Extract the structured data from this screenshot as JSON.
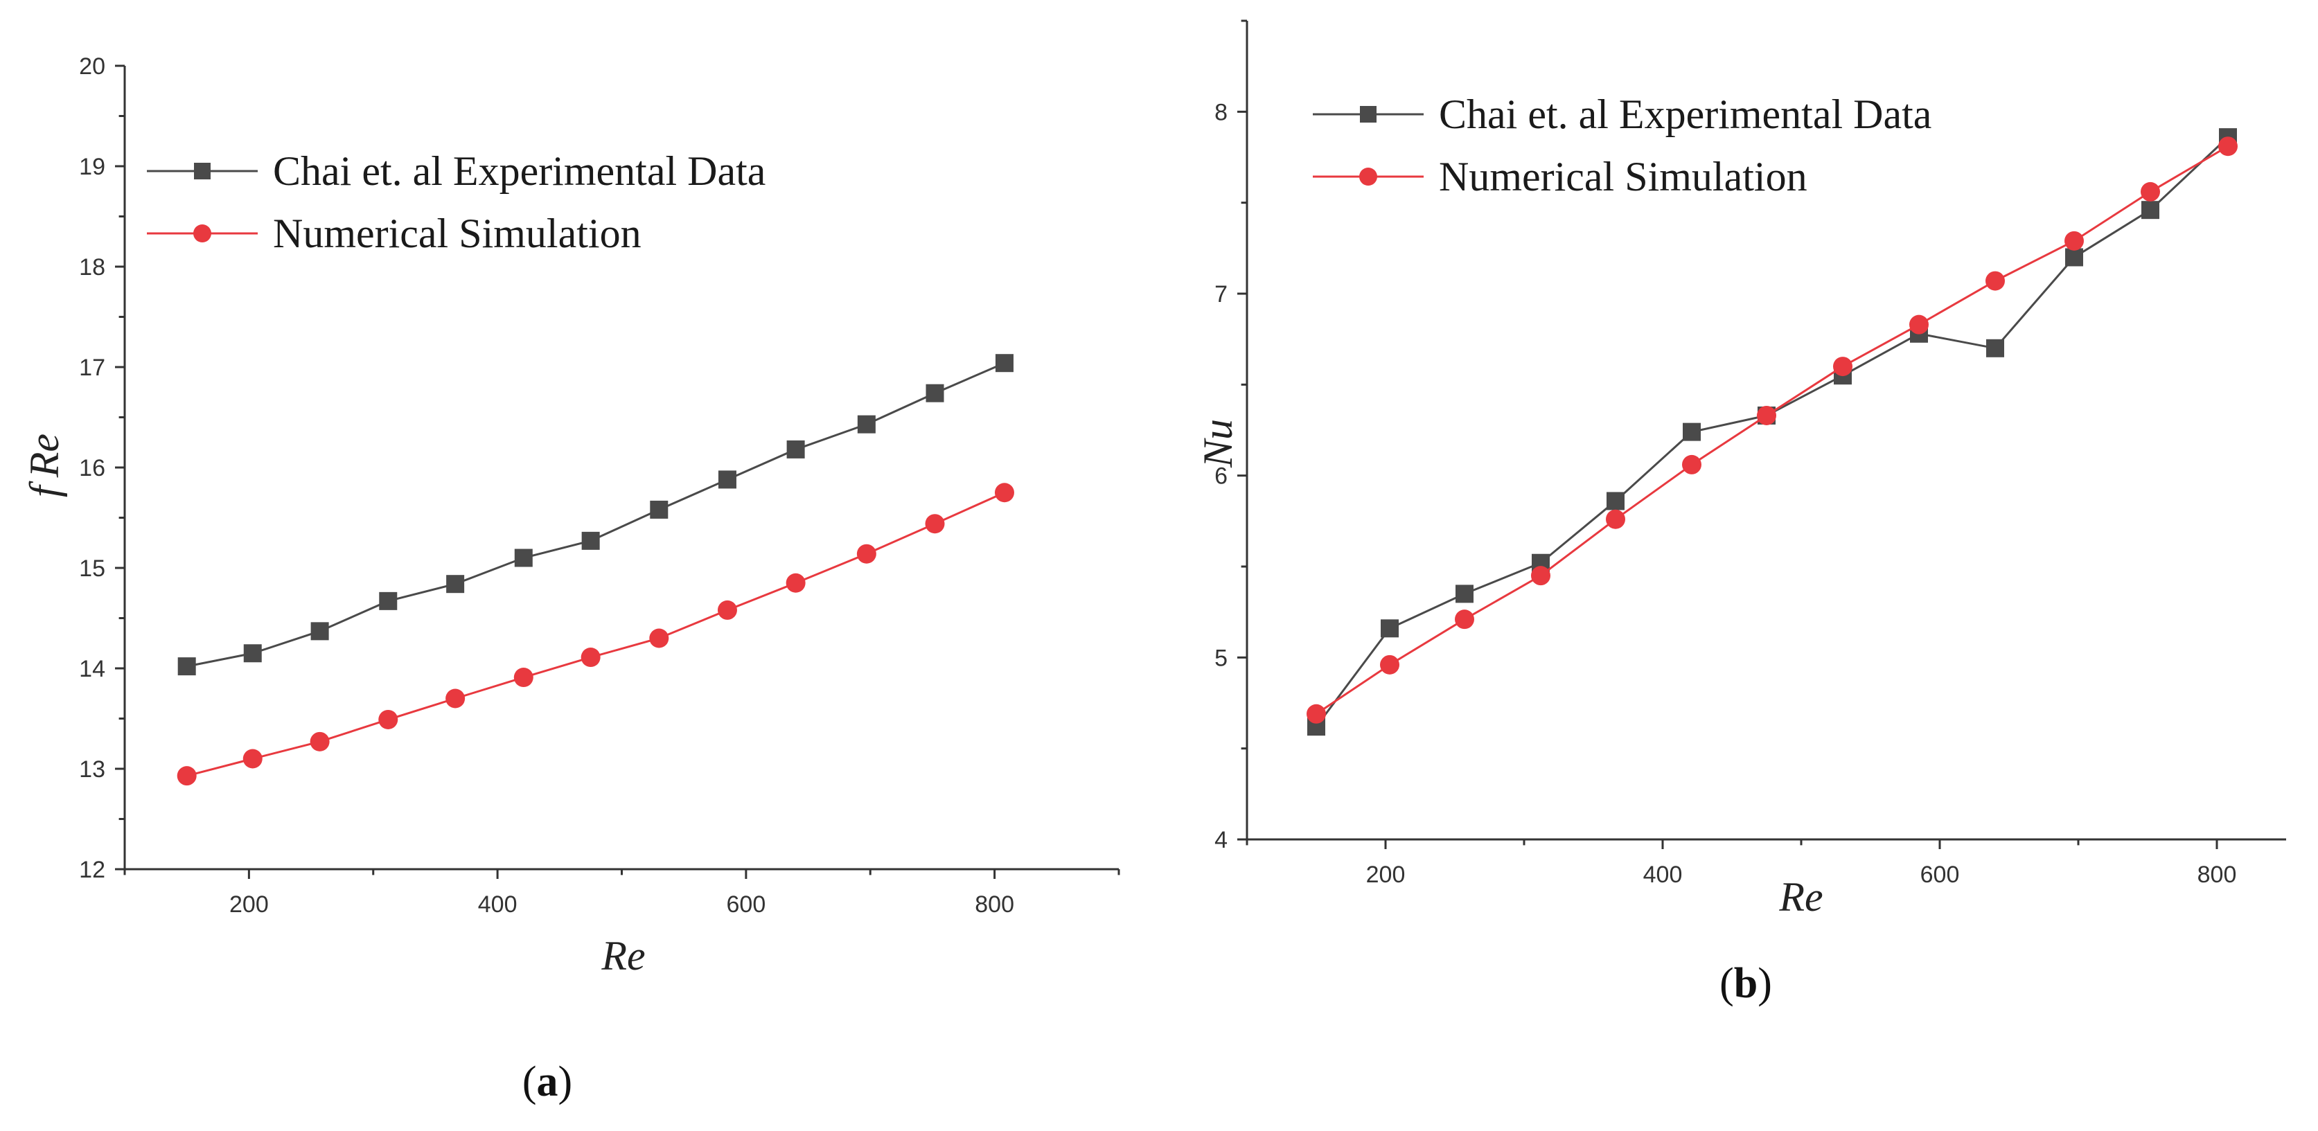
{
  "figure": {
    "panel_a_label": {
      "open": "(",
      "letter": "a",
      "close": ")"
    },
    "panel_b_label": {
      "open": "(",
      "letter": "b",
      "close": ")"
    }
  },
  "chart_data": [
    {
      "type": "line",
      "title": "",
      "xlabel": "Re",
      "ylabel_f": "f",
      "ylabel_re": "Re",
      "xlim": [
        100,
        900
      ],
      "ylim": [
        12,
        20
      ],
      "xticks": [
        200,
        400,
        600,
        800
      ],
      "yticks": [
        12,
        13,
        14,
        15,
        16,
        17,
        18,
        19,
        20
      ],
      "legend_position": "top-left",
      "grid": false,
      "x": [
        150,
        203,
        257,
        312,
        366,
        421,
        475,
        530,
        585,
        640,
        697,
        752,
        808
      ],
      "series": [
        {
          "name": "Chai et. al Experimental Data",
          "marker": "square",
          "color": "#4a4a4a",
          "values": [
            14.02,
            14.15,
            14.37,
            14.67,
            14.84,
            15.1,
            15.27,
            15.58,
            15.88,
            16.18,
            16.43,
            16.74,
            17.04
          ]
        },
        {
          "name": "Numerical Simulation",
          "marker": "circle",
          "color": "#e8393f",
          "values": [
            12.93,
            13.1,
            13.27,
            13.49,
            13.7,
            13.91,
            14.11,
            14.3,
            14.58,
            14.85,
            15.14,
            15.44,
            15.75
          ]
        }
      ]
    },
    {
      "type": "line",
      "title": "",
      "xlabel": "Re",
      "ylabel": "Nu",
      "xlim": [
        100,
        850
      ],
      "ylim": [
        4,
        8.5
      ],
      "xticks": [
        200,
        400,
        600,
        800
      ],
      "yticks": [
        4,
        5,
        6,
        7,
        8
      ],
      "legend_position": "top-left",
      "grid": false,
      "x": [
        150,
        203,
        257,
        312,
        366,
        421,
        475,
        530,
        585,
        640,
        697,
        752,
        808
      ],
      "series": [
        {
          "name": "Chai et. al Experimental Data",
          "marker": "square",
          "color": "#4a4a4a",
          "values": [
            4.62,
            5.16,
            5.35,
            5.52,
            5.86,
            6.24,
            6.33,
            6.55,
            6.78,
            6.7,
            7.2,
            7.46,
            7.86
          ]
        },
        {
          "name": "Numerical Simulation",
          "marker": "circle",
          "color": "#e8393f",
          "values": [
            4.69,
            4.96,
            5.21,
            5.45,
            5.76,
            6.06,
            6.33,
            6.6,
            6.83,
            7.07,
            7.29,
            7.56,
            7.81
          ]
        }
      ]
    }
  ]
}
